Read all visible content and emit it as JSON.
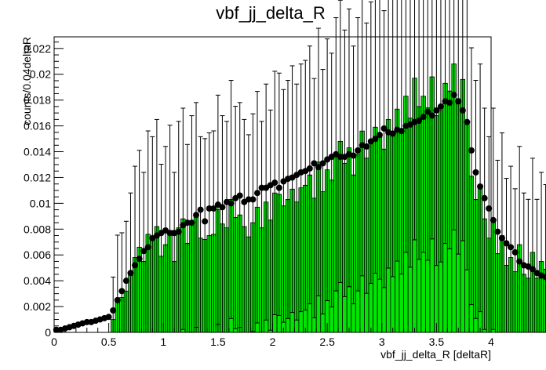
{
  "chart_data": {
    "type": "bar",
    "title": "vbf_jj_delta_R",
    "xlabel": "vbf_jj_delta_R [deltaR]",
    "ylabel": "counts/0.04deltaR",
    "xlim": [
      0,
      4
    ],
    "ylim": [
      0,
      0.0229
    ],
    "grid": false,
    "legend": "none",
    "bin_width": 0.04,
    "x_ticks": [
      "0",
      "0.5",
      "1",
      "1.5",
      "2",
      "2.5",
      "3",
      "3.5",
      "4"
    ],
    "y_ticks": [
      "0",
      "0.002",
      "0.004",
      "0.006",
      "0.008",
      "0.01",
      "0.012",
      "0.014",
      "0.016",
      "0.018",
      "0.02",
      "0.022"
    ],
    "colors": {
      "histogram_fill": "#00e600",
      "histogram_outline": "#000000",
      "markers": "#000000"
    },
    "series": [
      {
        "type": "histogram",
        "style": "filled bars with error bars",
        "values": [
          0,
          0,
          0,
          0,
          0,
          0,
          0,
          0,
          0,
          0,
          0,
          0,
          0,
          0.001,
          0.0026,
          0.0027,
          0.0032,
          0.0045,
          0.0058,
          0.0066,
          0.0055,
          0.0076,
          0.0073,
          0.0082,
          0.0059,
          0.0068,
          0.0079,
          0.0055,
          0.0081,
          0.0088,
          0.0069,
          0.0084,
          0.0091,
          0.0073,
          0.0072,
          0.0075,
          0.0076,
          0.0095,
          0.0084,
          0.0081,
          0.0103,
          0.0089,
          0.0091,
          0.0082,
          0.0074,
          0.0085,
          0.0097,
          0.0081,
          0.0101,
          0.0087,
          0.0108,
          0.0107,
          0.0098,
          0.0103,
          0.0111,
          0.0101,
          0.0112,
          0.0114,
          0.0122,
          0.0104,
          0.0132,
          0.0109,
          0.0126,
          0.0118,
          0.0138,
          0.0148,
          0.0131,
          0.0143,
          0.0122,
          0.0138,
          0.0156,
          0.0135,
          0.0147,
          0.0159,
          0.0152,
          0.0142,
          0.0165,
          0.0155,
          0.0173,
          0.0158,
          0.0183,
          0.0166,
          0.0197,
          0.0175,
          0.0183,
          0.0174,
          0.0198,
          0.0168,
          0.0172,
          0.0193,
          0.0187,
          0.0208,
          0.0181,
          0.0196,
          0.0163,
          0.0121,
          0.0103,
          0.0112,
          0.0088,
          0.0073,
          0.0088,
          0.0061,
          0.0075,
          0.0052,
          0.0058,
          0.0047,
          0.0068,
          0.0045,
          0.0042,
          0.0062,
          0.0042,
          0.0055,
          0.0049,
          0.0041,
          0.0056,
          0.0039,
          0.0043,
          0.0033,
          0.0053,
          0.0041
        ]
      },
      {
        "type": "scatter",
        "style": "black circle markers",
        "values": [
          0.0002,
          0.0002,
          0.0003,
          0.0004,
          0.0005,
          0.0006,
          0.0007,
          0.0008,
          0.0008,
          0.0009,
          0.001,
          0.0011,
          0.0012,
          0.0017,
          0.0025,
          0.0032,
          0.004,
          0.0046,
          0.0052,
          0.0057,
          0.0063,
          0.0066,
          0.0073,
          0.0075,
          0.0077,
          0.0079,
          0.0077,
          0.0077,
          0.0078,
          0.0083,
          0.0085,
          0.0085,
          0.0091,
          0.0095,
          0.0086,
          0.0096,
          0.0096,
          0.0099,
          0.0097,
          0.0101,
          0.01,
          0.0104,
          0.0106,
          0.0101,
          0.0103,
          0.0103,
          0.0108,
          0.0112,
          0.0112,
          0.0114,
          0.0116,
          0.0112,
          0.0117,
          0.0119,
          0.012,
          0.0122,
          0.0124,
          0.0125,
          0.0127,
          0.0131,
          0.0128,
          0.0131,
          0.0134,
          0.0136,
          0.0138,
          0.0136,
          0.0136,
          0.0138,
          0.0137,
          0.0141,
          0.0145,
          0.0144,
          0.0148,
          0.015,
          0.0153,
          0.0158,
          0.0155,
          0.0154,
          0.0157,
          0.0156,
          0.016,
          0.0161,
          0.0163,
          0.0164,
          0.0167,
          0.0171,
          0.0168,
          0.0172,
          0.0175,
          0.0179,
          0.0178,
          0.0184,
          0.0179,
          0.0172,
          0.0163,
          0.0141,
          0.0124,
          0.0113,
          0.0104,
          0.0096,
          0.0087,
          0.0078,
          0.0073,
          0.0069,
          0.0066,
          0.0062,
          0.0055,
          0.0052,
          0.0051,
          0.0049,
          0.0046,
          0.0044,
          0.0043,
          0.0043,
          0.004,
          0.0038,
          0.0035,
          0.0034,
          0.0031,
          0.003
        ]
      }
    ]
  }
}
